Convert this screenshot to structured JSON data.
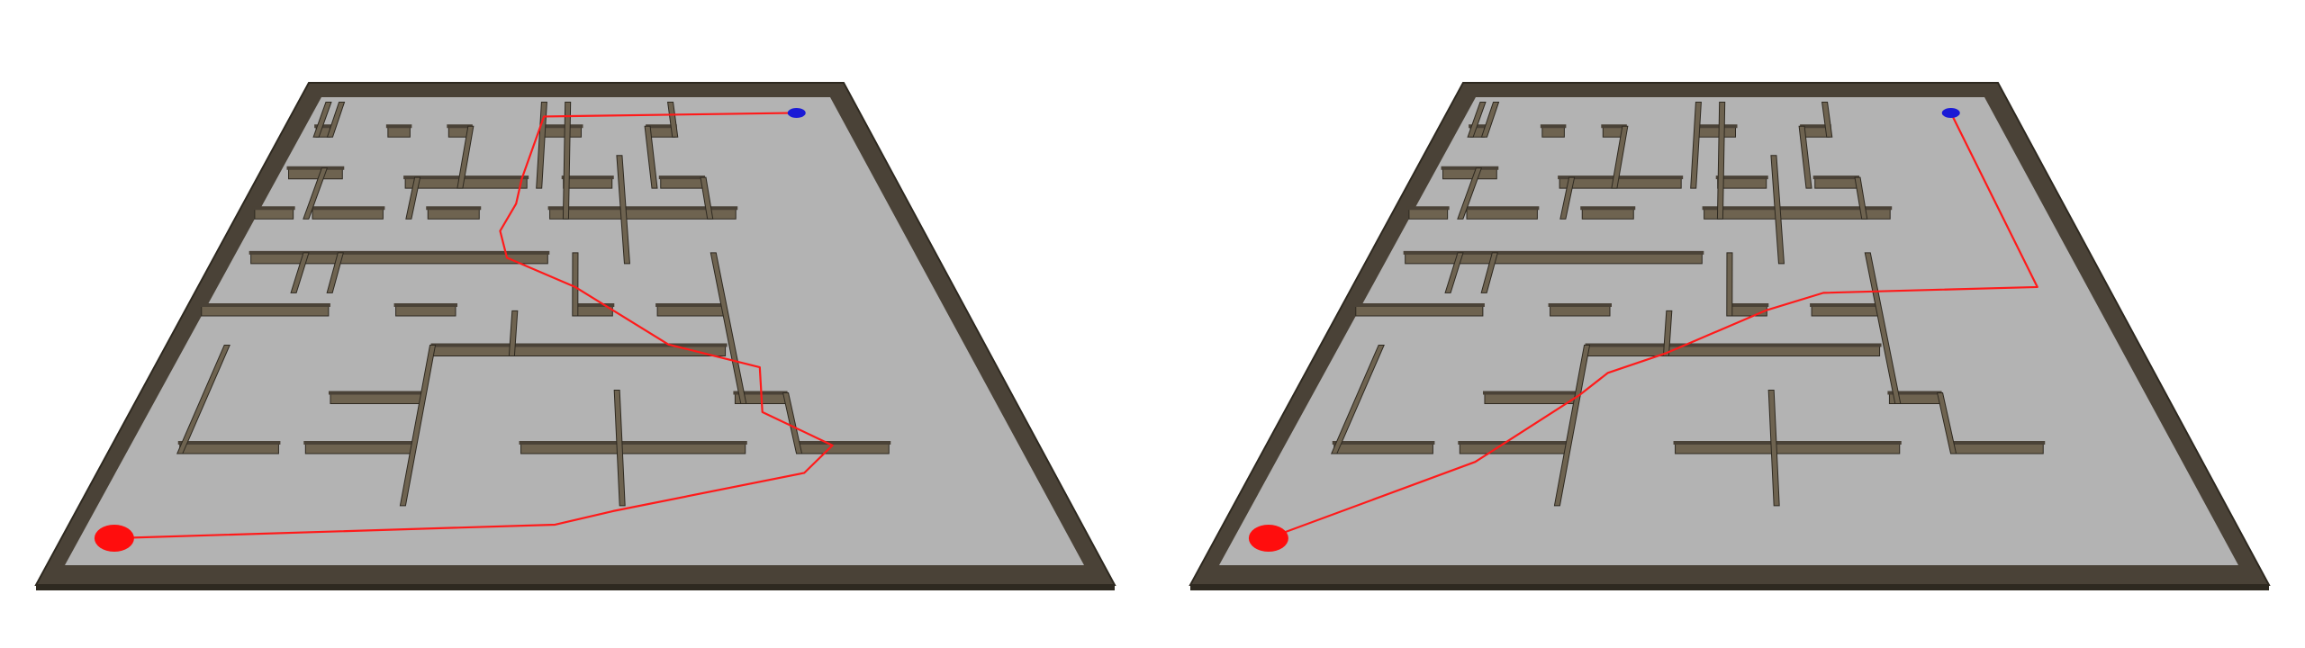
{
  "colors": {
    "floor": "#b3b3b3",
    "wall_top": "#4a4237",
    "wall_side": "#6e6350",
    "wall_dark": "#2e2920",
    "path": "#ff1a1a",
    "start": "#ff0d0d",
    "goal": "#1a1ad6"
  },
  "maze": {
    "grid_cols": 10,
    "grid_rows": 8,
    "horizontal_walls": [
      [
        0.3,
        0.55,
        0.55
      ],
      [
        1.6,
        2.0,
        0.55
      ],
      [
        2.7,
        3.1,
        0.55
      ],
      [
        4.4,
        5.1,
        0.55
      ],
      [
        6.3,
        6.8,
        0.55
      ],
      [
        0.2,
        1.1,
        1.2
      ],
      [
        2.2,
        4.2,
        1.35
      ],
      [
        4.8,
        5.6,
        1.35
      ],
      [
        6.4,
        7.1,
        1.35
      ],
      [
        0.0,
        0.6,
        1.85
      ],
      [
        0.9,
        2.0,
        1.85
      ],
      [
        2.7,
        3.5,
        1.85
      ],
      [
        4.6,
        7.5,
        1.85
      ],
      [
        0.3,
        4.6,
        2.6
      ],
      [
        0.0,
        1.7,
        3.5
      ],
      [
        2.6,
        3.4,
        3.5
      ],
      [
        5.0,
        5.5,
        3.5
      ],
      [
        6.1,
        7.0,
        3.5
      ],
      [
        3.2,
        6.9,
        4.2
      ],
      [
        2.1,
        3.2,
        5.05
      ],
      [
        6.9,
        7.5,
        5.05
      ],
      [
        0.6,
        1.7,
        5.95
      ],
      [
        2.0,
        3.2,
        5.95
      ],
      [
        4.4,
        6.9,
        5.95
      ],
      [
        7.5,
        8.5,
        5.95
      ],
      [
        0.0,
        10.0,
        6.0
      ]
    ],
    "vertical_walls": [
      [
        0.3,
        0.2,
        0.55
      ],
      [
        0.55,
        0.2,
        0.55
      ],
      [
        3.1,
        0.55,
        1.35
      ],
      [
        4.4,
        0.2,
        1.35
      ],
      [
        4.85,
        0.2,
        1.85
      ],
      [
        6.8,
        0.2,
        0.55
      ],
      [
        6.3,
        0.55,
        1.35
      ],
      [
        0.8,
        1.2,
        1.85
      ],
      [
        2.4,
        1.35,
        1.85
      ],
      [
        7.1,
        1.35,
        1.85
      ],
      [
        5.75,
        1.0,
        2.6
      ],
      [
        1.1,
        2.6,
        3.1
      ],
      [
        1.6,
        2.6,
        3.1
      ],
      [
        5.0,
        2.6,
        3.5
      ],
      [
        7.0,
        2.6,
        5.05
      ],
      [
        0.6,
        4.2,
        5.95
      ],
      [
        3.2,
        4.2,
        6.9
      ],
      [
        4.2,
        3.6,
        4.2
      ],
      [
        5.5,
        5.0,
        6.9
      ],
      [
        7.5,
        5.05,
        5.95
      ]
    ]
  },
  "panels": [
    {
      "start": [
        0.35,
        7.5
      ],
      "goal": [
        9.2,
        0.2
      ],
      "path": [
        [
          0.35,
          7.5
        ],
        [
          4.8,
          7.25
        ],
        [
          5.4,
          7.0
        ],
        [
          7.5,
          6.3
        ],
        [
          7.9,
          5.8
        ],
        [
          7.2,
          5.2
        ],
        [
          7.3,
          4.4
        ],
        [
          6.2,
          4.0
        ],
        [
          5.0,
          3.0
        ],
        [
          4.0,
          2.5
        ],
        [
          3.85,
          2.05
        ],
        [
          4.05,
          1.6
        ],
        [
          4.1,
          1.2
        ],
        [
          4.4,
          0.25
        ],
        [
          9.2,
          0.2
        ]
      ]
    },
    {
      "start": [
        0.35,
        7.5
      ],
      "goal": [
        9.2,
        0.2
      ],
      "path": [
        [
          0.35,
          7.5
        ],
        [
          2.2,
          6.1
        ],
        [
          3.2,
          4.9
        ],
        [
          3.5,
          4.5
        ],
        [
          4.2,
          4.15
        ],
        [
          5.5,
          3.4
        ],
        [
          6.3,
          3.1
        ],
        [
          9.3,
          3.0
        ],
        [
          9.2,
          0.2
        ]
      ]
    }
  ]
}
